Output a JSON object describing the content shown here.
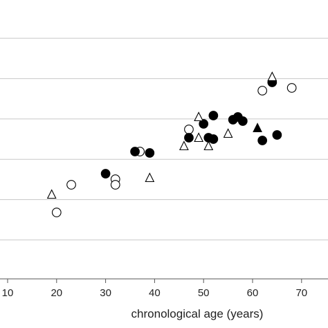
{
  "chart_data": {
    "type": "scatter",
    "xlabel": "chronological age (years)",
    "ylabel": "",
    "xlim": [
      8.5,
      73
    ],
    "x_ticks": [
      10,
      20,
      30,
      40,
      50,
      60,
      70
    ],
    "y_gridlines": 7,
    "grid": "horizontal",
    "legend": "none",
    "colors": {
      "grid": "#c8c8c8",
      "axis": "#555555",
      "marker_fill": "#000000",
      "marker_open": "#ffffff"
    },
    "series": [
      {
        "marker": "open-circle",
        "points": [
          {
            "x": 20,
            "y": 0.24
          },
          {
            "x": 23,
            "y": 0.34
          },
          {
            "x": 32,
            "y": 0.36
          },
          {
            "x": 32,
            "y": 0.34
          },
          {
            "x": 37,
            "y": 0.46
          },
          {
            "x": 47,
            "y": 0.54
          },
          {
            "x": 62,
            "y": 0.68
          },
          {
            "x": 68,
            "y": 0.69
          }
        ]
      },
      {
        "marker": "filled-circle",
        "points": [
          {
            "x": 30,
            "y": 0.38
          },
          {
            "x": 36,
            "y": 0.46
          },
          {
            "x": 39,
            "y": 0.455
          },
          {
            "x": 47,
            "y": 0.51
          },
          {
            "x": 50,
            "y": 0.56
          },
          {
            "x": 51,
            "y": 0.51
          },
          {
            "x": 52,
            "y": 0.505
          },
          {
            "x": 52,
            "y": 0.59
          },
          {
            "x": 56,
            "y": 0.575
          },
          {
            "x": 57,
            "y": 0.585
          },
          {
            "x": 58,
            "y": 0.57
          },
          {
            "x": 62,
            "y": 0.5
          },
          {
            "x": 64,
            "y": 0.71
          },
          {
            "x": 65,
            "y": 0.52
          }
        ]
      },
      {
        "marker": "open-triangle",
        "points": [
          {
            "x": 19,
            "y": 0.305
          },
          {
            "x": 39,
            "y": 0.365
          },
          {
            "x": 46,
            "y": 0.48
          },
          {
            "x": 49,
            "y": 0.585
          },
          {
            "x": 49,
            "y": 0.51
          },
          {
            "x": 51,
            "y": 0.48
          },
          {
            "x": 55,
            "y": 0.525
          },
          {
            "x": 64,
            "y": 0.73
          }
        ]
      },
      {
        "marker": "filled-triangle",
        "points": [
          {
            "x": 61,
            "y": 0.545
          }
        ]
      }
    ]
  }
}
